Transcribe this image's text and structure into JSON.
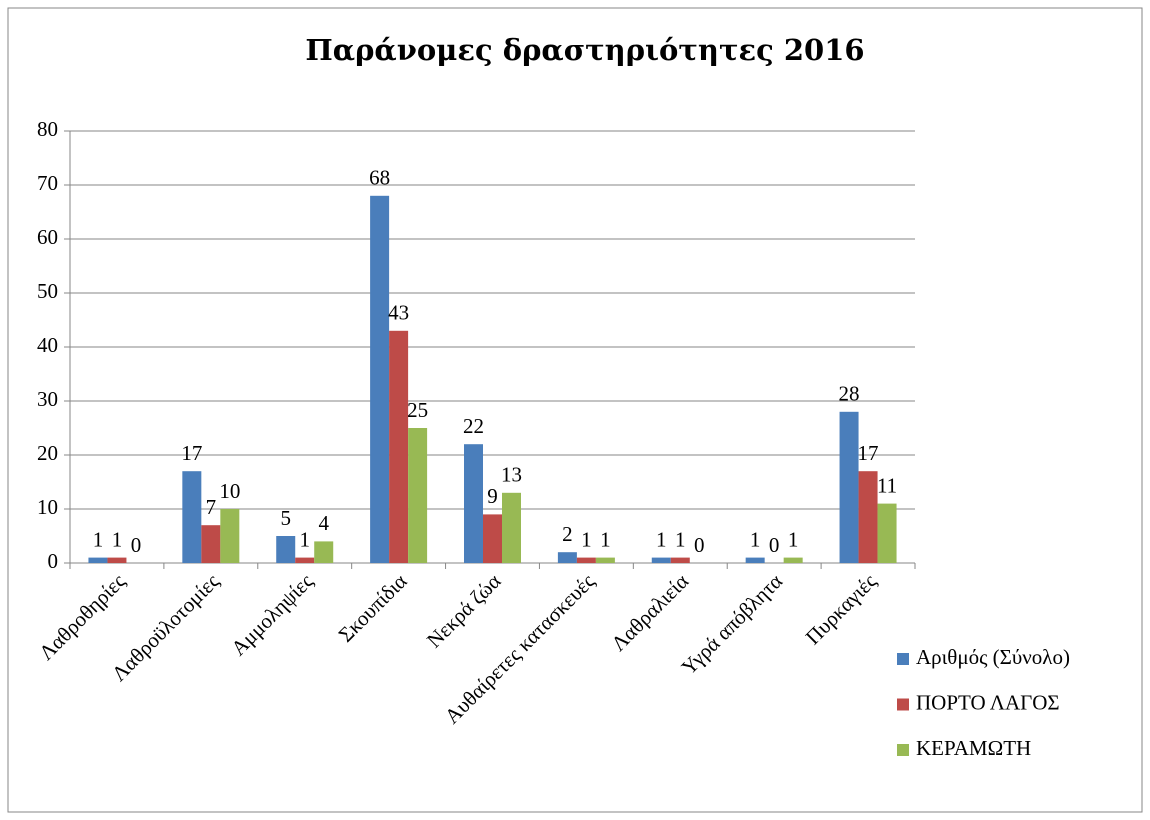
{
  "chart_data": {
    "type": "bar",
    "title": "Παράνομες δραστηριότητες 2016",
    "categories": [
      "Λαθροθηρίες",
      "Λαθροϋλοτομίες",
      "Αμμοληψίες",
      "Σκουπίδια",
      "Νεκρά ζώα",
      "Αυθαίρετες κατασκευές",
      "Λαθραλιεία",
      "Υγρά απόβλητα",
      "Πυρκαγιές"
    ],
    "series": [
      {
        "name": "Αριθμός (Σύνολο)",
        "color": "#4a7ebb",
        "values": [
          1,
          17,
          5,
          68,
          22,
          2,
          1,
          1,
          28
        ]
      },
      {
        "name": "ΠΟΡΤΟ ΛΑΓΟΣ",
        "color": "#be4b48",
        "values": [
          1,
          7,
          1,
          43,
          9,
          1,
          1,
          0,
          17
        ]
      },
      {
        "name": "ΚΕΡΑΜΩΤΗ",
        "color": "#98b954",
        "values": [
          0,
          10,
          4,
          25,
          13,
          1,
          0,
          1,
          11
        ]
      }
    ],
    "ylim": [
      0,
      80
    ],
    "yticks": [
      0,
      10,
      20,
      30,
      40,
      50,
      60,
      70,
      80
    ],
    "grid": true,
    "legend": "right"
  }
}
